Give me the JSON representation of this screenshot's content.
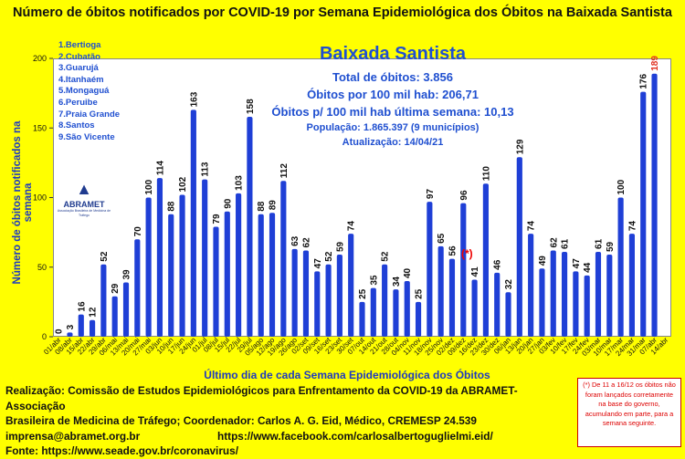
{
  "chart_data": {
    "type": "bar",
    "title": "Número de óbitos notificados por COVID-19 por Semana Epidemiológica dos Óbitos na Baixada Santista",
    "ylabel": "Número de óbitos notificados na semana",
    "xlabel": "Último dia de cada Semana Epidemiológica dos Óbitos",
    "ylim": [
      0,
      200
    ],
    "yticks": [
      0,
      50,
      100,
      150,
      200
    ],
    "grid": false,
    "bar_color": "#1f3fd6",
    "categories": [
      "01/abr",
      "08/abr",
      "15/abr",
      "22/abr",
      "29/abr",
      "06/mai",
      "13/mai",
      "20/mai",
      "27/mai",
      "03/jun",
      "10/jun",
      "17/jun",
      "24/jun",
      "01/jul",
      "08/jul",
      "15/jul",
      "22/jul",
      "29/jul",
      "05/ago",
      "12/ago",
      "19/ago",
      "26/ago",
      "02/set",
      "09/set",
      "16/set",
      "23/set",
      "30/set",
      "07/out",
      "14/out",
      "21/out",
      "28/out",
      "04/nov",
      "11/nov",
      "18/nov",
      "25/nov",
      "02/dez",
      "09/dez",
      "16/dez",
      "23/dez",
      "30/dez",
      "06/jan",
      "13/jan",
      "20/jan",
      "27/jan",
      "03/fev",
      "10/fev",
      "17/fev",
      "24/fev",
      "03/mar",
      "10/mar",
      "17/mar",
      "24/mar",
      "31/mar",
      "07/abr",
      "14/abr"
    ],
    "values": [
      0,
      3,
      16,
      12,
      52,
      29,
      39,
      70,
      100,
      114,
      88,
      102,
      163,
      113,
      79,
      90,
      103,
      158,
      88,
      89,
      112,
      63,
      62,
      47,
      52,
      59,
      74,
      25,
      35,
      52,
      34,
      40,
      25,
      97,
      65,
      56,
      96,
      41,
      110,
      46,
      32,
      129,
      74,
      49,
      62,
      61,
      47,
      44,
      61,
      59,
      100,
      74,
      176,
      189,
      null
    ],
    "last_label_color": "#e0301e"
  },
  "cities": [
    "1.Bertioga",
    "2.Cubatão",
    "3.Guarujá",
    "4.Itanhaém",
    "5.Mongaguá",
    "6.Peruibe",
    "7.Praia Grande",
    "8.Santos",
    "9.São Vicente"
  ],
  "info": {
    "title": "Baixada Santista",
    "total": "Total de óbitos: 3.856",
    "per100k": "Óbitos por 100 mil hab: 206,71",
    "lastweek": "Óbitos p/ 100 mil hab última semana: 10,13",
    "population": "População: 1.865.397 (9 municípios)",
    "update": "Atualização: 14/04/21"
  },
  "logo": {
    "name": "ABRAMET",
    "subtitle": "Associação Brasileira de Medicina de Tráfego"
  },
  "marker": "(*)",
  "footer": {
    "line1": "Realização: Comissão de Estudos Epidemiológicos para Enfrentamento da COVID-19 da ABRAMET-Associação",
    "line2": "Brasileira de Medicina de Tráfego; Coordenador: Carlos A. G. Eid, Médico, CREMESP 24.539",
    "email": "imprensa@abramet.org.br",
    "facebook": "https://www.facebook.com/carlosalbertoguglielmi.eid/",
    "source": "Fonte: https://www.seade.gov.br/coronavirus/"
  },
  "note": "(*) De 11 a 16/12 os óbitos não foram lançados corretamente na base do governo, acumulando em parte, para a semana seguinte."
}
